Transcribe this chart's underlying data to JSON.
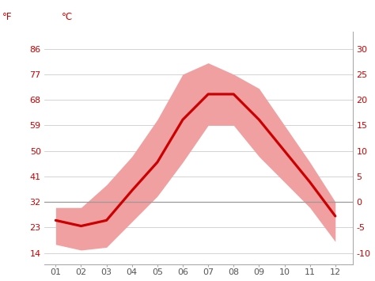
{
  "months": [
    1,
    2,
    3,
    4,
    5,
    6,
    7,
    8,
    9,
    10,
    11,
    12
  ],
  "x_labels": [
    "01",
    "02",
    "03",
    "04",
    "05",
    "06",
    "07",
    "08",
    "09",
    "10",
    "11",
    "12"
  ],
  "mean_f": [
    25.5,
    23.5,
    25.5,
    36,
    46,
    61,
    70,
    70,
    61,
    50,
    39,
    27
  ],
  "high_f": [
    30,
    30,
    38,
    48,
    61,
    77,
    81,
    77,
    72,
    59,
    46,
    32
  ],
  "low_f": [
    17,
    15,
    16,
    25,
    34,
    46,
    59,
    59,
    48,
    39,
    30,
    18
  ],
  "line_color": "#cc0000",
  "band_color": "#f0a0a0",
  "zero_line_color": "#999999",
  "bg_color": "#ffffff",
  "grid_color": "#cccccc",
  "left_ticks_f": [
    14,
    23,
    32,
    41,
    50,
    59,
    68,
    77,
    86
  ],
  "right_ticks_c": [
    -10,
    -5,
    0,
    5,
    10,
    15,
    20,
    25,
    30
  ],
  "ylim_f": [
    10,
    92
  ],
  "xlim": [
    0.55,
    12.7
  ],
  "freeze_line_f": 32,
  "label_f": "°F",
  "label_c": "°C"
}
